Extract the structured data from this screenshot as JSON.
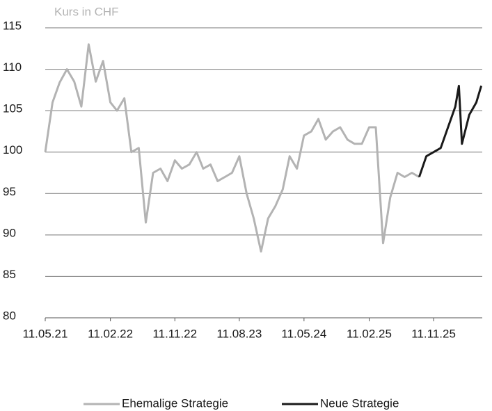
{
  "chart_data": {
    "type": "line",
    "y_label": "Kurs in CHF",
    "x": [
      "11.05.21",
      "11.06.21",
      "11.07.21",
      "11.08.21",
      "11.09.21",
      "11.10.21",
      "11.11.21",
      "11.12.21",
      "11.01.22",
      "11.02.22",
      "11.03.22",
      "11.04.22",
      "11.05.22",
      "11.06.22",
      "11.07.22",
      "11.08.22",
      "11.09.22",
      "11.10.22",
      "11.11.22",
      "11.12.22",
      "11.01.23",
      "11.02.23",
      "11.03.23",
      "11.04.23",
      "11.05.23",
      "11.06.23",
      "11.07.23",
      "11.08.23",
      "11.09.23",
      "11.10.23",
      "11.11.23",
      "11.12.23",
      "11.01.24",
      "11.02.24",
      "11.03.24",
      "11.04.24",
      "11.05.24",
      "11.06.24",
      "11.07.24",
      "11.08.24",
      "11.09.24",
      "11.10.24",
      "11.11.24",
      "11.12.24",
      "11.01.25",
      "11.02.25",
      "11.03.25",
      "11.04.25",
      "11.05.25",
      "11.06.25",
      "11.07.25",
      "11.08.25",
      "11.09.25",
      "11.10.25",
      "11.11.25",
      "11.12.25",
      "11.01.26",
      "11.02.26",
      "26.02.26",
      "11.03.26",
      "11.04.26",
      "11.05.26",
      "01.06.26"
    ],
    "series": [
      {
        "name": "Ehemalige Strategie",
        "color": "#b3b3b3",
        "values": [
          100,
          106,
          108.4,
          110,
          108.5,
          105.5,
          113,
          108.5,
          111,
          106,
          105,
          106.5,
          100,
          100.5,
          91.5,
          97.5,
          98,
          96.5,
          99,
          98,
          98.5,
          100,
          98,
          98.5,
          96.5,
          97,
          97.5,
          99.5,
          95,
          92,
          88,
          92,
          93.5,
          95.5,
          99.5,
          98,
          102,
          102.5,
          104,
          101.5,
          102.5,
          103,
          101.5,
          101,
          101,
          103,
          103,
          89,
          94.5,
          97.5,
          97,
          97.5,
          97,
          null,
          null,
          null,
          null,
          null,
          null,
          null,
          null,
          null,
          null
        ]
      },
      {
        "name": "Neue Strategie",
        "color": "#1a1a1a",
        "values": [
          null,
          null,
          null,
          null,
          null,
          null,
          null,
          null,
          null,
          null,
          null,
          null,
          null,
          null,
          null,
          null,
          null,
          null,
          null,
          null,
          null,
          null,
          null,
          null,
          null,
          null,
          null,
          null,
          null,
          null,
          null,
          null,
          null,
          null,
          null,
          null,
          null,
          null,
          null,
          null,
          null,
          null,
          null,
          null,
          null,
          null,
          null,
          null,
          null,
          null,
          null,
          null,
          97,
          99.5,
          100,
          100.5,
          103,
          105.5,
          108,
          101,
          104.5,
          106,
          108
        ]
      }
    ],
    "xlim": [
      "11.05.21",
      "05.06.26"
    ],
    "xticks": [
      "11.05.21",
      "11.02.22",
      "11.11.22",
      "11.08.23",
      "11.05.24",
      "11.02.25",
      "11.11.25"
    ],
    "ylim": [
      80,
      115
    ],
    "yticks": [
      80,
      85,
      90,
      95,
      100,
      105,
      110,
      115
    ],
    "grid": true,
    "legend": "bottom"
  }
}
